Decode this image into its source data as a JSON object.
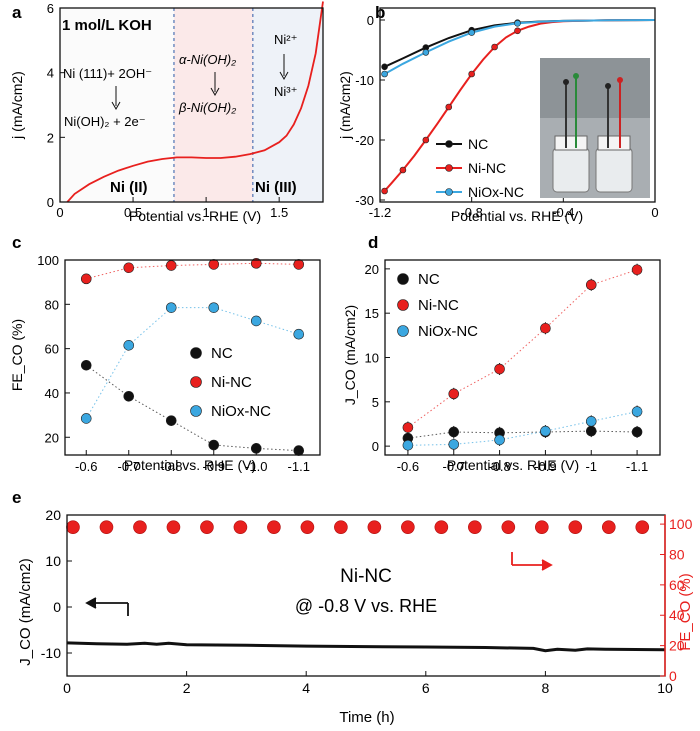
{
  "colors": {
    "black": "#111111",
    "red": "#e8201e",
    "blue": "#3ba7e0",
    "axis_red": "#e8201e",
    "shade_left": "#fbfbfb",
    "shade_mid": "#fbe9e9",
    "shade_right": "#eef2f8"
  },
  "chart_data": [
    {
      "panel": "a",
      "type": "line",
      "xlabel": "Potential vs. RHE (V)",
      "ylabel": "j (mA/cm2)",
      "xlim": [
        0,
        1.8
      ],
      "ylim": [
        0,
        6
      ],
      "xticks": [
        "0",
        "0.5",
        "1",
        "1.5"
      ],
      "yticks": [
        "0",
        "2",
        "4",
        "6"
      ],
      "x": [
        0.05,
        0.1,
        0.2,
        0.3,
        0.4,
        0.5,
        0.6,
        0.7,
        0.8,
        0.9,
        1.0,
        1.1,
        1.2,
        1.3,
        1.4,
        1.5,
        1.55,
        1.6,
        1.65,
        1.7,
        1.75,
        1.8
      ],
      "y": [
        0.0,
        0.25,
        0.55,
        0.78,
        0.97,
        1.12,
        1.25,
        1.33,
        1.38,
        1.38,
        1.36,
        1.36,
        1.4,
        1.48,
        1.6,
        1.85,
        2.05,
        2.4,
        2.9,
        3.6,
        4.6,
        6.2
      ],
      "regions": {
        "boundaries": [
          0.78,
          1.32
        ]
      },
      "annotations": {
        "electrolyte": "1 mol/L KOH",
        "reaction_left_1": "Ni (111)+ 2OH⁻",
        "reaction_left_2": "Ni(OH)₂ + 2e⁻",
        "reaction_mid_1": "α-Ni(OH)₂",
        "reaction_mid_2": "β-Ni(OH)₂",
        "reaction_right_1": "Ni²⁺",
        "reaction_right_2": "Ni³⁺",
        "label_ni2": "Ni (II)",
        "label_ni3": "Ni (III)"
      }
    },
    {
      "panel": "b",
      "type": "line",
      "xlabel": "Potential vs. RHE (V)",
      "ylabel": "j (mA/cm2)",
      "xlim": [
        -1.2,
        0
      ],
      "ylim": [
        -30,
        0
      ],
      "xticks": [
        "-1.2",
        "-0.8",
        "-0.4",
        "0"
      ],
      "yticks": [
        "0",
        "-10",
        "-20",
        "-30"
      ],
      "series": [
        {
          "name": "NC",
          "x": [
            -1.18,
            -1.1,
            -1.0,
            -0.9,
            -0.8,
            -0.7,
            -0.6,
            -0.5,
            -0.4,
            -0.3,
            -0.2,
            -0.1,
            0
          ],
          "y": [
            -7.8,
            -6.4,
            -4.6,
            -3.0,
            -1.7,
            -0.9,
            -0.45,
            -0.25,
            -0.15,
            -0.1,
            -0.05,
            -0.02,
            0
          ]
        },
        {
          "name": "Ni-NC",
          "x": [
            -1.18,
            -1.15,
            -1.1,
            -1.05,
            -1.0,
            -0.95,
            -0.9,
            -0.85,
            -0.8,
            -0.75,
            -0.7,
            -0.65,
            -0.6,
            -0.55,
            -0.5,
            -0.45,
            -0.4,
            -0.3,
            -0.2,
            -0.1,
            0
          ],
          "y": [
            -28.5,
            -27.2,
            -25.0,
            -22.6,
            -20.0,
            -17.3,
            -14.5,
            -11.7,
            -9.0,
            -6.6,
            -4.5,
            -2.9,
            -1.8,
            -1.1,
            -0.6,
            -0.35,
            -0.2,
            -0.1,
            -0.05,
            -0.02,
            0
          ]
        },
        {
          "name": "NiOx-NC",
          "x": [
            -1.18,
            -1.1,
            -1.0,
            -0.9,
            -0.8,
            -0.7,
            -0.6,
            -0.5,
            -0.4,
            -0.3,
            -0.2,
            -0.1,
            0
          ],
          "y": [
            -9.0,
            -7.3,
            -5.4,
            -3.6,
            -2.1,
            -1.1,
            -0.55,
            -0.3,
            -0.15,
            -0.1,
            -0.05,
            -0.02,
            0
          ]
        }
      ],
      "legend": [
        "NC",
        "Ni-NC",
        "NiOx-NC"
      ]
    },
    {
      "panel": "c",
      "type": "scatter",
      "xlabel": "Potential vs. RHE (V)",
      "ylabel": "FE_CO (%)",
      "categories": [
        "-0.6",
        "-0.7",
        "-0.8",
        "-0.9",
        "-1.0",
        "-1.1"
      ],
      "ylim": [
        12,
        100
      ],
      "yticks": [
        "20",
        "40",
        "60",
        "80",
        "100"
      ],
      "series": [
        {
          "name": "NC",
          "values": [
            52.5,
            38.5,
            27.5,
            16.5,
            15.0,
            14.0
          ]
        },
        {
          "name": "Ni-NC",
          "values": [
            91.5,
            96.5,
            97.5,
            98.0,
            98.5,
            98.0
          ]
        },
        {
          "name": "NiOx-NC",
          "values": [
            28.5,
            61.5,
            78.5,
            78.5,
            72.5,
            66.5
          ]
        }
      ],
      "legend": [
        "NC",
        "Ni-NC",
        "NiOx-NC"
      ]
    },
    {
      "panel": "d",
      "type": "scatter",
      "xlabel": "Potential vs. RHE (V)",
      "ylabel": "J_CO (mA/cm2)",
      "categories": [
        "-0.6",
        "-0.7",
        "-0.8",
        "-0.9",
        "-1",
        "-1.1"
      ],
      "ylim": [
        -1,
        21
      ],
      "yticks": [
        "0",
        "5",
        "10",
        "15",
        "20"
      ],
      "series": [
        {
          "name": "NC",
          "values": [
            0.9,
            1.6,
            1.5,
            1.6,
            1.7,
            1.6
          ]
        },
        {
          "name": "Ni-NC",
          "values": [
            2.1,
            5.9,
            8.7,
            13.3,
            18.2,
            19.9
          ]
        },
        {
          "name": "NiOx-NC",
          "values": [
            0.1,
            0.2,
            0.7,
            1.7,
            2.8,
            3.9
          ]
        }
      ],
      "legend": [
        "NC",
        "Ni-NC",
        "NiOx-NC"
      ]
    },
    {
      "panel": "e",
      "type": "line",
      "xlabel": "Time (h)",
      "ylabel": "J_CO (mA/cm2)",
      "ylabel_right": "FE_CO (%)",
      "xlim": [
        0,
        10
      ],
      "ylim": [
        -15,
        20
      ],
      "ylim_right": [
        0,
        106
      ],
      "xticks": [
        "0",
        "2",
        "4",
        "6",
        "8",
        "10"
      ],
      "yticks": [
        "-10",
        "0",
        "10",
        "20"
      ],
      "yticks_right": [
        "0",
        "20",
        "40",
        "60",
        "80",
        "100"
      ],
      "current_t": [
        0,
        0.5,
        1,
        1.3,
        1.5,
        1.7,
        2,
        3,
        4,
        5,
        6,
        7,
        7.8,
        8,
        8.2,
        8.5,
        8.7,
        9,
        10
      ],
      "current_j": [
        -7.8,
        -8.0,
        -8.1,
        -7.9,
        -8.1,
        -7.9,
        -8.2,
        -8.3,
        -8.5,
        -8.6,
        -8.7,
        -8.8,
        -9.0,
        -9.5,
        -9.2,
        -9.4,
        -9.1,
        -9.2,
        -9.3
      ],
      "fe_t": [
        0.1,
        0.66,
        1.22,
        1.78,
        2.34,
        2.9,
        3.46,
        4.02,
        4.58,
        5.14,
        5.7,
        6.26,
        6.82,
        7.38,
        7.94,
        8.5,
        9.06,
        9.62
      ],
      "fe_values": [
        98,
        98,
        98,
        98,
        98,
        98,
        98,
        98,
        98,
        98,
        98,
        98,
        98,
        98,
        98,
        98,
        98,
        98
      ],
      "annotation_title": "Ni-NC",
      "annotation_sub": "@ -0.8 V vs. RHE"
    }
  ],
  "panel_labels": [
    "a",
    "b",
    "c",
    "d",
    "e"
  ]
}
